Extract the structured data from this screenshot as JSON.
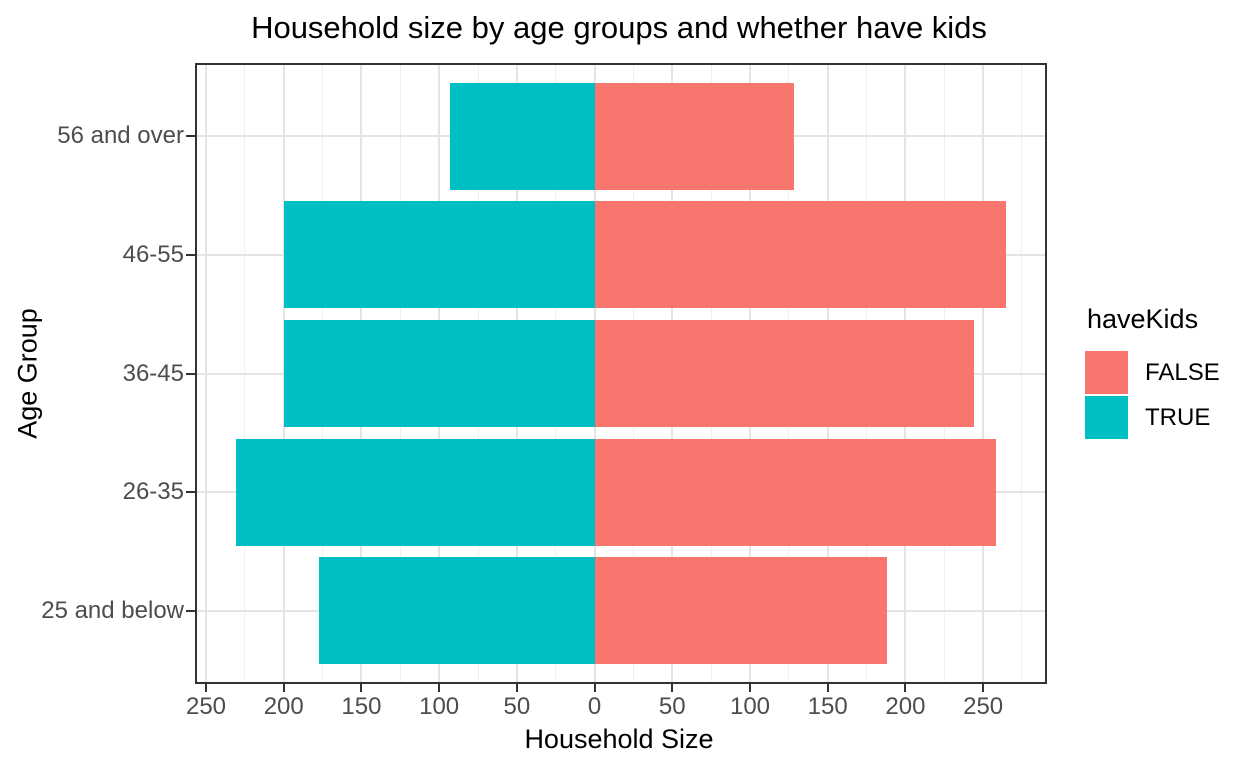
{
  "title": "Household size by age groups and whether have kids",
  "chart_data": {
    "type": "bar",
    "variant": "horizontal-diverging-pyramid",
    "title": "Household size by age groups and whether have kids",
    "xlabel": "Household Size",
    "ylabel": "Age Group",
    "categories": [
      "56 and over",
      "46-55",
      "36-45",
      "26-35",
      "25 and below"
    ],
    "series": [
      {
        "name": "FALSE",
        "direction": "right",
        "color": "#F8766D",
        "values": [
          128,
          265,
          244,
          258,
          188
        ]
      },
      {
        "name": "TRUE",
        "direction": "left",
        "color": "#00BFC4",
        "values": [
          93,
          200,
          200,
          231,
          177
        ]
      }
    ],
    "xlim": [
      -255.8,
      289.8
    ],
    "x_tick_values": [
      -250,
      -200,
      -150,
      -100,
      -50,
      0,
      50,
      100,
      150,
      200,
      250
    ],
    "x_tick_labels": [
      "250",
      "200",
      "150",
      "100",
      "50",
      "0",
      "50",
      "100",
      "150",
      "200",
      "250"
    ],
    "minor_grid_step": 25,
    "grid": "on",
    "bar_width_fraction": 0.9,
    "legend": {
      "title": "haveKids",
      "position": "right",
      "entries": [
        {
          "label": "FALSE",
          "color": "#F8766D"
        },
        {
          "label": "TRUE",
          "color": "#00BFC4"
        }
      ]
    },
    "colors": {
      "panel_border": "#333333",
      "grid_major": "#e4e4e4",
      "grid_minor": "#f1f1f1",
      "tick_text": "#4d4d4d",
      "title_text": "#000000"
    }
  }
}
